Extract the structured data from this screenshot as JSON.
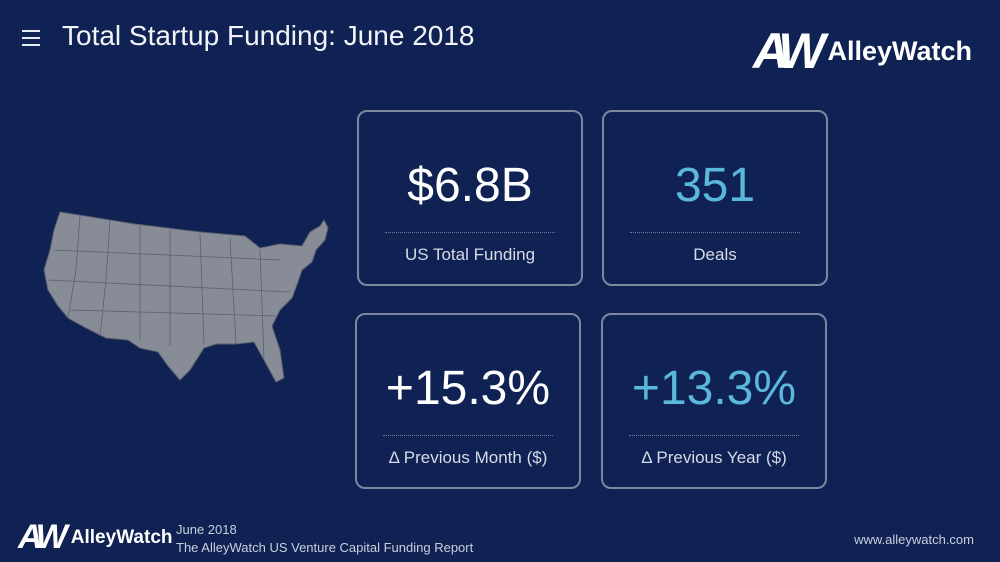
{
  "header": {
    "title": "Total Startup Funding: June 2018"
  },
  "logo": {
    "mark": "AW",
    "name": "AlleyWatch"
  },
  "cards": [
    {
      "value": "$6.8B",
      "label": "US Total Funding",
      "color": "#ffffff"
    },
    {
      "value": "351",
      "label": "Deals",
      "color": "#5ab8dc"
    },
    {
      "value": "+15.3%",
      "label": "Δ Previous Month ($)",
      "color": "#ffffff"
    },
    {
      "value": "+13.3%",
      "label": "Δ Previous Year ($)",
      "color": "#5ab8dc"
    }
  ],
  "footer": {
    "logo_mark": "AW",
    "logo_name": "AlleyWatch",
    "date": "June 2018",
    "report": "The AlleyWatch US Venture Capital Funding Report",
    "url": "www.alleywatch.com"
  }
}
